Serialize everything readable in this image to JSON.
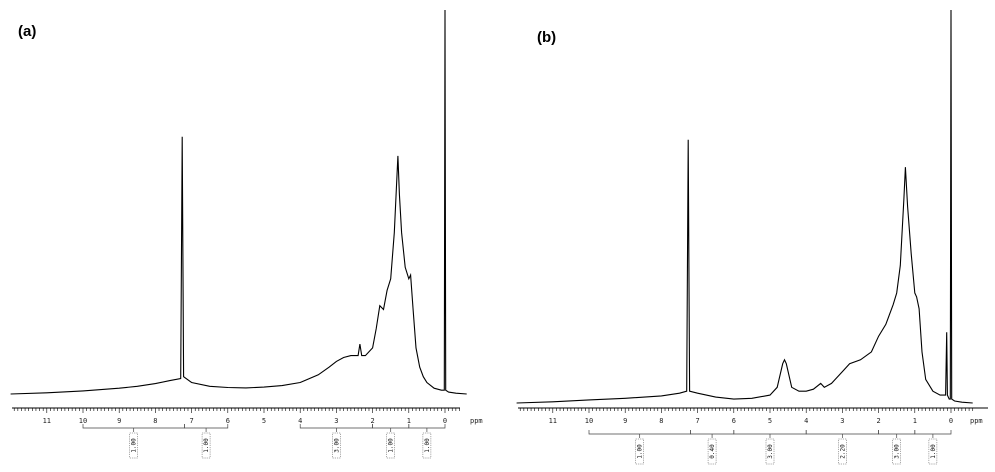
{
  "chart_data": [
    {
      "type": "line",
      "panel_label": "(a)",
      "xlabel": "ppm",
      "x_reversed": true,
      "xlim": [
        12.0,
        -0.6
      ],
      "ticks": [
        11,
        10,
        9,
        8,
        7,
        6,
        5,
        4,
        3,
        2,
        1,
        0
      ],
      "tick_labels": [
        "11",
        "10",
        "9",
        "8",
        "7",
        "6",
        "5",
        "4",
        "3",
        "2",
        "1",
        "0"
      ],
      "series": [
        {
          "x": [
            12.0,
            11.0,
            10.0,
            9.0,
            8.5,
            8.0,
            7.6,
            7.3,
            7.26,
            7.22,
            7.0,
            6.5,
            6.0,
            5.5,
            5.0,
            4.5,
            4.0,
            3.5,
            3.2,
            3.0,
            2.8,
            2.6,
            2.4,
            2.35,
            2.3,
            2.2,
            2.0,
            1.9,
            1.8,
            1.7,
            1.6,
            1.5,
            1.4,
            1.3,
            1.26,
            1.2,
            1.1,
            1.0,
            0.95,
            0.88,
            0.8,
            0.7,
            0.6,
            0.5,
            0.3,
            0.1,
            0.02,
            0.0,
            -0.02,
            -0.1,
            -0.3,
            -0.6
          ],
          "y": [
            0.0,
            0.003,
            0.008,
            0.015,
            0.02,
            0.027,
            0.035,
            0.04,
            0.67,
            0.045,
            0.03,
            0.02,
            0.017,
            0.016,
            0.018,
            0.022,
            0.03,
            0.05,
            0.07,
            0.085,
            0.095,
            0.1,
            0.1,
            0.13,
            0.1,
            0.1,
            0.12,
            0.17,
            0.23,
            0.22,
            0.27,
            0.3,
            0.42,
            0.62,
            0.52,
            0.42,
            0.33,
            0.3,
            0.31,
            0.22,
            0.12,
            0.07,
            0.045,
            0.03,
            0.015,
            0.01,
            0.01,
            1.0,
            0.01,
            0.005,
            0.002,
            0.0
          ]
        }
      ],
      "integrals": [
        {
          "from": 10.0,
          "to": 7.2,
          "label": "1.00"
        },
        {
          "from": 7.2,
          "to": 6.0,
          "label": "1.00"
        },
        {
          "from": 4.0,
          "to": 2.0,
          "label": "3.00"
        },
        {
          "from": 2.0,
          "to": 1.0,
          "label": "1.00"
        },
        {
          "from": 1.0,
          "to": 0.0,
          "label": "1.00"
        }
      ]
    },
    {
      "type": "line",
      "panel_label": "(b)",
      "xlabel": "ppm",
      "x_reversed": true,
      "xlim": [
        12.0,
        -0.6
      ],
      "ticks": [
        11,
        10,
        9,
        8,
        7,
        6,
        5,
        4,
        3,
        2,
        1,
        0
      ],
      "tick_labels": [
        "11",
        "10",
        "9",
        "8",
        "7",
        "6",
        "5",
        "4",
        "3",
        "2",
        "1",
        "0"
      ],
      "series": [
        {
          "x": [
            12.0,
            11.0,
            10.0,
            9.0,
            8.0,
            7.5,
            7.3,
            7.26,
            7.22,
            7.0,
            6.5,
            6.0,
            5.5,
            5.0,
            4.8,
            4.65,
            4.6,
            4.55,
            4.4,
            4.2,
            4.0,
            3.8,
            3.6,
            3.5,
            3.3,
            3.0,
            2.8,
            2.5,
            2.2,
            2.0,
            1.8,
            1.6,
            1.5,
            1.4,
            1.3,
            1.26,
            1.2,
            1.1,
            1.0,
            0.95,
            0.88,
            0.8,
            0.7,
            0.5,
            0.3,
            0.15,
            0.12,
            0.1,
            0.05,
            0.02,
            0.0,
            -0.02,
            -0.1,
            -0.3,
            -0.6
          ],
          "y": [
            0.0,
            0.003,
            0.008,
            0.012,
            0.018,
            0.025,
            0.03,
            0.67,
            0.03,
            0.025,
            0.015,
            0.01,
            0.012,
            0.02,
            0.04,
            0.1,
            0.11,
            0.1,
            0.04,
            0.03,
            0.03,
            0.035,
            0.05,
            0.04,
            0.05,
            0.08,
            0.1,
            0.11,
            0.13,
            0.17,
            0.2,
            0.25,
            0.28,
            0.35,
            0.52,
            0.6,
            0.5,
            0.38,
            0.28,
            0.27,
            0.24,
            0.13,
            0.06,
            0.03,
            0.02,
            0.02,
            0.18,
            0.02,
            0.01,
            0.01,
            1.0,
            0.01,
            0.005,
            0.002,
            0.0
          ]
        }
      ],
      "integrals": [
        {
          "from": 10.0,
          "to": 7.2,
          "label": "1.00"
        },
        {
          "from": 7.2,
          "to": 6.0,
          "label": "0.40"
        },
        {
          "from": 6.0,
          "to": 4.0,
          "label": "3.00"
        },
        {
          "from": 4.0,
          "to": 2.0,
          "label": "2.20"
        },
        {
          "from": 2.0,
          "to": 1.0,
          "label": "3.00"
        },
        {
          "from": 1.0,
          "to": 0.0,
          "label": "1.00"
        }
      ]
    }
  ]
}
